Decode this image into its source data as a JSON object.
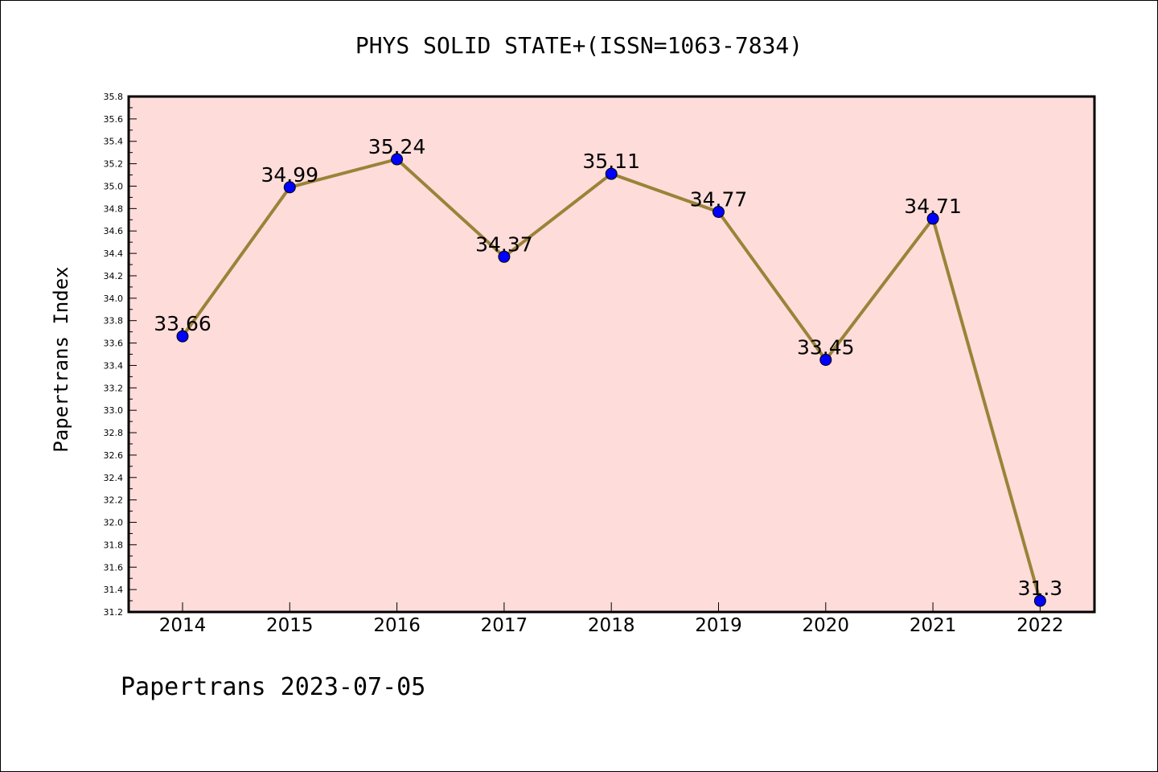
{
  "footer": "Papertrans 2023-07-05",
  "colors": {
    "plot_background": "#fddcda",
    "line": "#9a8338",
    "marker": "#0000ff"
  },
  "chart_data": {
    "type": "line",
    "title": "PHYS SOLID STATE+(ISSN=1063-7834)",
    "xlabel": "",
    "ylabel": "Papertrans Index",
    "categories": [
      "2014",
      "2015",
      "2016",
      "2017",
      "2018",
      "2019",
      "2020",
      "2021",
      "2022"
    ],
    "series": [
      {
        "values": [
          33.66,
          34.99,
          35.24,
          34.37,
          35.11,
          34.77,
          33.45,
          34.71,
          31.3
        ]
      }
    ],
    "data_labels": [
      "33.66",
      "34.99",
      "35.24",
      "34.37",
      "35.11",
      "34.77",
      "33.45",
      "34.71",
      "31.3"
    ],
    "ylim": [
      31.2,
      35.8
    ],
    "yticks": [
      "31.2",
      "31.4",
      "31.6",
      "31.8",
      "32.0",
      "32.2",
      "32.4",
      "32.6",
      "32.8",
      "33.0",
      "33.2",
      "33.4",
      "33.6",
      "33.8",
      "34.0",
      "34.2",
      "34.4",
      "34.6",
      "34.8",
      "35.0",
      "35.2",
      "35.4",
      "35.6",
      "35.8"
    ],
    "grid": false,
    "legend": "none"
  }
}
